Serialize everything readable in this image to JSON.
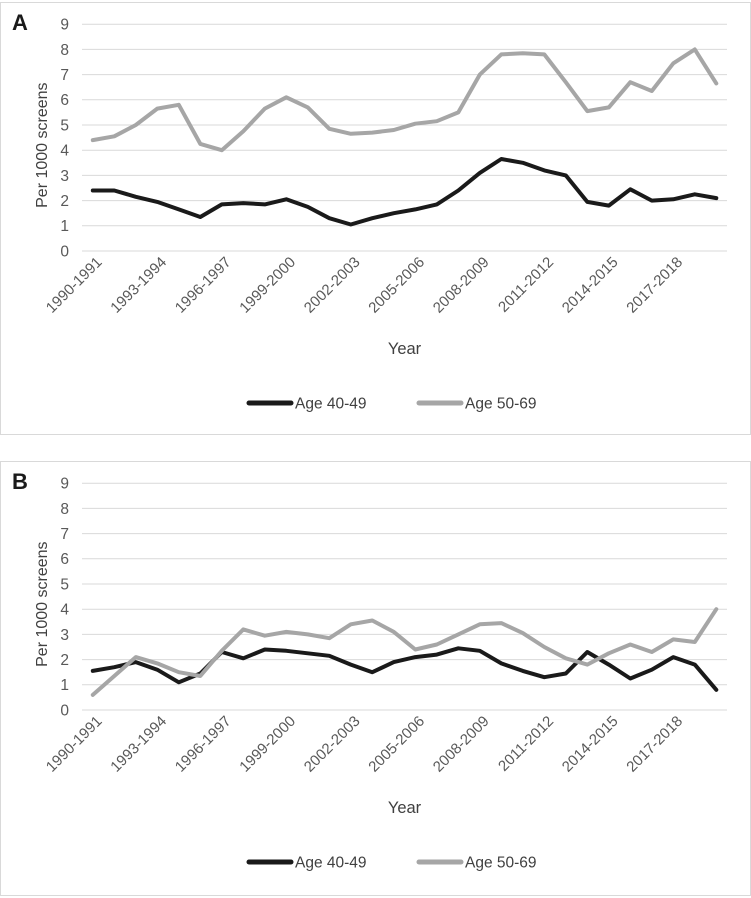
{
  "colors": {
    "series_black": "#1a1a1a",
    "series_gray": "#a6a6a6",
    "gridline": "#d9d9d9",
    "tick_text": "#595959",
    "axis_title_text": "#404040",
    "panel_border": "#d9d9d9",
    "background": "#ffffff"
  },
  "chart_data": [
    {
      "panel_label": "A",
      "type": "line",
      "title": "",
      "xlabel": "Year",
      "ylabel": "Per 1000 screens",
      "ylim": [
        0,
        9
      ],
      "grid": true,
      "legend_position": "bottom",
      "yticks": [
        0,
        1,
        2,
        3,
        4,
        5,
        6,
        7,
        8,
        9
      ],
      "categories": [
        "1990-1991",
        "1991-1992",
        "1992-1993",
        "1993-1994",
        "1994-1995",
        "1995-1996",
        "1996-1997",
        "1997-1998",
        "1998-1999",
        "1999-2000",
        "2000-2001",
        "2001-2002",
        "2002-2003",
        "2003-2004",
        "2004-2005",
        "2005-2006",
        "2006-2007",
        "2007-2008",
        "2008-2009",
        "2009-2010",
        "2010-2011",
        "2011-2012",
        "2012-2013",
        "2013-2014",
        "2014-2015",
        "2015-2016",
        "2016-2017",
        "2017-2018",
        "2018-2019",
        "2019-2020"
      ],
      "x_tick_indices": [
        0,
        3,
        6,
        9,
        12,
        15,
        18,
        21,
        24,
        27
      ],
      "x_tick_labels": [
        "1990-1991",
        "1993-1994",
        "1996-1997",
        "1999-2000",
        "2002-2003",
        "2005-2006",
        "2008-2009",
        "2011-2012",
        "2014-2015",
        "2017-2018"
      ],
      "series": [
        {
          "name": "Age 40-49",
          "color": "#1a1a1a",
          "values": [
            2.4,
            2.4,
            2.15,
            1.95,
            1.65,
            1.35,
            1.85,
            1.9,
            1.85,
            2.05,
            1.75,
            1.3,
            1.05,
            1.3,
            1.5,
            1.65,
            1.85,
            2.4,
            3.1,
            3.65,
            3.5,
            3.2,
            3.0,
            1.95,
            1.8,
            2.45,
            2.0,
            2.05,
            2.25,
            2.1
          ]
        },
        {
          "name": "Age 50-69",
          "color": "#a6a6a6",
          "values": [
            4.4,
            4.55,
            5.0,
            5.65,
            5.8,
            4.25,
            4.0,
            4.75,
            5.65,
            6.1,
            5.7,
            4.85,
            4.65,
            4.7,
            4.8,
            5.05,
            5.15,
            5.5,
            7.0,
            7.8,
            7.85,
            7.8,
            6.7,
            5.55,
            5.7,
            6.7,
            6.35,
            7.45,
            8.0,
            6.65
          ]
        }
      ]
    },
    {
      "panel_label": "B",
      "type": "line",
      "title": "",
      "xlabel": "Year",
      "ylabel": "Per 1000 screens",
      "ylim": [
        0,
        9
      ],
      "grid": true,
      "legend_position": "bottom",
      "yticks": [
        0,
        1,
        2,
        3,
        4,
        5,
        6,
        7,
        8,
        9
      ],
      "categories": [
        "1990-1991",
        "1991-1992",
        "1992-1993",
        "1993-1994",
        "1994-1995",
        "1995-1996",
        "1996-1997",
        "1997-1998",
        "1998-1999",
        "1999-2000",
        "2000-2001",
        "2001-2002",
        "2002-2003",
        "2003-2004",
        "2004-2005",
        "2005-2006",
        "2006-2007",
        "2007-2008",
        "2008-2009",
        "2009-2010",
        "2010-2011",
        "2011-2012",
        "2012-2013",
        "2013-2014",
        "2014-2015",
        "2015-2016",
        "2016-2017",
        "2017-2018",
        "2018-2019",
        "2019-2020"
      ],
      "x_tick_indices": [
        0,
        3,
        6,
        9,
        12,
        15,
        18,
        21,
        24,
        27
      ],
      "x_tick_labels": [
        "1990-1991",
        "1993-1994",
        "1996-1997",
        "1999-2000",
        "2002-2003",
        "2005-2006",
        "2008-2009",
        "2011-2012",
        "2014-2015",
        "2017-2018"
      ],
      "series": [
        {
          "name": "Age 40-49",
          "color": "#1a1a1a",
          "values": [
            1.55,
            1.7,
            1.9,
            1.6,
            1.1,
            1.45,
            2.3,
            2.05,
            2.4,
            2.35,
            2.25,
            2.15,
            1.8,
            1.5,
            1.9,
            2.1,
            2.2,
            2.45,
            2.35,
            1.85,
            1.55,
            1.3,
            1.45,
            2.3,
            1.8,
            1.25,
            1.6,
            2.1,
            1.8,
            0.8
          ]
        },
        {
          "name": "Age 50-69",
          "color": "#a6a6a6",
          "values": [
            0.6,
            1.35,
            2.1,
            1.85,
            1.5,
            1.35,
            2.35,
            3.2,
            2.95,
            3.1,
            3.0,
            2.85,
            3.4,
            3.55,
            3.1,
            2.4,
            2.6,
            3.0,
            3.4,
            3.45,
            3.05,
            2.5,
            2.05,
            1.8,
            2.25,
            2.6,
            2.3,
            2.8,
            2.7,
            4.0
          ]
        }
      ]
    }
  ]
}
